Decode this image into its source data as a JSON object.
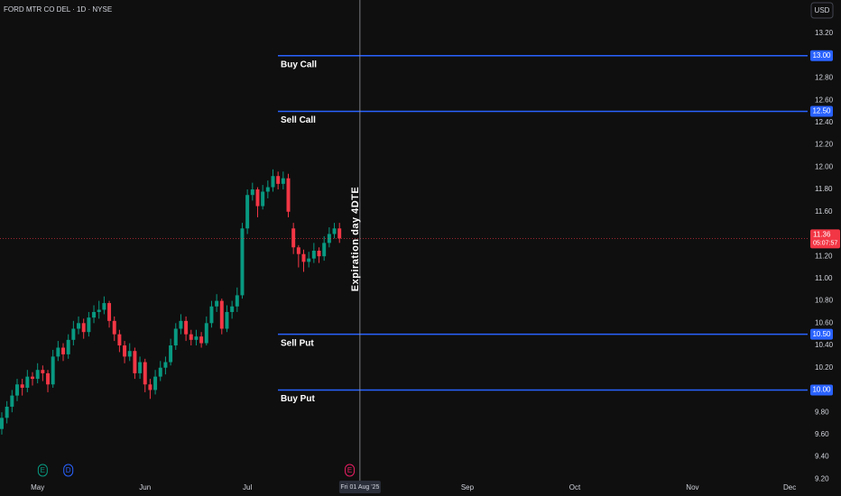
{
  "chart_data": {
    "type": "candlestick",
    "title": "FORD MTR CO DEL · 1D · NYSE",
    "currency": "USD",
    "up_color": "#089981",
    "down_color": "#f23645",
    "open": [
      9.65,
      9.75,
      9.85,
      9.95,
      10.05,
      10.02,
      10.12,
      10.1,
      10.18,
      10.15,
      10.05,
      10.3,
      10.38,
      10.32,
      10.45,
      10.55,
      10.6,
      10.52,
      10.65,
      10.7,
      10.72,
      10.78,
      10.62,
      10.5,
      10.4,
      10.3,
      10.35,
      10.15,
      10.25,
      10.05,
      10.0,
      10.12,
      10.2,
      10.25,
      10.4,
      10.55,
      10.62,
      10.5,
      10.45,
      10.48,
      10.42,
      10.6,
      10.75,
      10.8,
      10.55,
      10.7,
      10.75,
      10.85,
      11.45,
      11.75,
      11.8,
      11.65,
      11.78,
      11.82,
      11.92,
      11.85,
      11.9,
      11.45,
      11.28,
      11.22,
      11.15,
      11.18,
      11.25,
      11.2,
      11.32,
      11.4,
      11.45
    ],
    "high": [
      9.8,
      9.9,
      10.0,
      10.1,
      10.1,
      10.18,
      10.16,
      10.24,
      10.22,
      10.18,
      10.36,
      10.44,
      10.42,
      10.5,
      10.62,
      10.66,
      10.64,
      10.7,
      10.76,
      10.8,
      10.84,
      10.8,
      10.66,
      10.54,
      10.44,
      10.42,
      10.38,
      10.3,
      10.28,
      10.1,
      10.18,
      10.26,
      10.3,
      10.46,
      10.6,
      10.68,
      10.66,
      10.54,
      10.54,
      10.52,
      10.66,
      10.8,
      10.86,
      10.82,
      10.76,
      10.8,
      10.92,
      11.5,
      11.8,
      11.86,
      11.82,
      11.84,
      11.88,
      11.98,
      11.96,
      11.96,
      11.94,
      11.5,
      11.3,
      11.26,
      11.24,
      11.32,
      11.28,
      11.38,
      11.46,
      11.5,
      11.5
    ],
    "low": [
      9.6,
      9.7,
      9.8,
      9.9,
      9.95,
      9.98,
      10.04,
      10.06,
      10.08,
      9.98,
      10.02,
      10.26,
      10.26,
      10.28,
      10.4,
      10.5,
      10.46,
      10.48,
      10.6,
      10.64,
      10.68,
      10.56,
      10.44,
      10.34,
      10.24,
      10.26,
      10.1,
      10.1,
      9.98,
      9.92,
      9.96,
      10.08,
      10.14,
      10.22,
      10.36,
      10.5,
      10.44,
      10.4,
      10.4,
      10.38,
      10.4,
      10.56,
      10.7,
      10.5,
      10.52,
      10.64,
      10.7,
      10.82,
      11.4,
      11.7,
      11.55,
      11.62,
      11.72,
      11.78,
      11.8,
      11.8,
      11.55,
      11.22,
      11.1,
      11.06,
      11.1,
      11.14,
      11.14,
      11.16,
      11.28,
      11.36,
      11.32
    ],
    "close": [
      9.75,
      9.85,
      9.95,
      10.05,
      10.02,
      10.12,
      10.1,
      10.18,
      10.15,
      10.05,
      10.3,
      10.38,
      10.32,
      10.45,
      10.55,
      10.6,
      10.52,
      10.65,
      10.7,
      10.72,
      10.78,
      10.62,
      10.5,
      10.4,
      10.3,
      10.35,
      10.15,
      10.25,
      10.05,
      10.0,
      10.12,
      10.2,
      10.25,
      10.4,
      10.55,
      10.62,
      10.5,
      10.45,
      10.48,
      10.42,
      10.6,
      10.75,
      10.8,
      10.55,
      10.7,
      10.75,
      10.85,
      11.45,
      11.75,
      11.8,
      11.65,
      11.78,
      11.82,
      11.92,
      11.85,
      11.9,
      11.6,
      11.28,
      11.22,
      11.15,
      11.18,
      11.25,
      11.2,
      11.32,
      11.4,
      11.45,
      11.36
    ],
    "countdown": "05:07:57",
    "xlim": [
      -0.35,
      157.5
    ],
    "xticks": [
      {
        "value": 7,
        "label": "May"
      },
      {
        "value": 28,
        "label": "Jun"
      },
      {
        "value": 48,
        "label": "Jul"
      },
      {
        "value": 91,
        "label": "Sep"
      },
      {
        "value": 112,
        "label": "Oct"
      },
      {
        "value": 135,
        "label": "Nov"
      },
      {
        "value": 154,
        "label": "Dec"
      }
    ],
    "ylim": [
      9.17,
      13.5
    ],
    "yticks": [
      {
        "value": 13.2,
        "label": "13.20"
      },
      {
        "value": 12.8,
        "label": "12.80"
      },
      {
        "value": 12.6,
        "label": "12.60"
      },
      {
        "value": 12.4,
        "label": "12.40"
      },
      {
        "value": 12.2,
        "label": "12.20"
      },
      {
        "value": 12,
        "label": "12.00"
      },
      {
        "value": 11.8,
        "label": "11.80"
      },
      {
        "value": 11.6,
        "label": "11.60"
      },
      {
        "value": 11.2,
        "label": "11.20"
      },
      {
        "value": 11,
        "label": "11.00"
      },
      {
        "value": 10.8,
        "label": "10.80"
      },
      {
        "value": 10.6,
        "label": "10.60"
      },
      {
        "value": 10.4,
        "label": "10.40"
      },
      {
        "value": 10.2,
        "label": "10.20"
      },
      {
        "value": 9.8,
        "label": "9.80"
      },
      {
        "value": 9.6,
        "label": "9.60"
      },
      {
        "value": 9.4,
        "label": "9.40"
      },
      {
        "value": 9.2,
        "label": "9.20"
      }
    ],
    "price_lines": [
      {
        "name": "Buy Call",
        "value": 13,
        "label": "13.00",
        "color": "#2962ff"
      },
      {
        "name": "Sell Call",
        "value": 12.5,
        "label": "12.50",
        "color": "#2962ff"
      },
      {
        "name": "Sell Put",
        "value": 10.5,
        "label": "10.50",
        "color": "#2962ff"
      },
      {
        "name": "Buy Put",
        "value": 10,
        "label": "10.00",
        "color": "#2962ff"
      }
    ],
    "vertical_line": {
      "value": 70,
      "label": "Fri 01 Aug '25",
      "annotation": "Expiration day 4DTE"
    },
    "events": [
      {
        "x": 8,
        "label": "E",
        "color": "#089981"
      },
      {
        "x": 13,
        "label": "D",
        "color": "#2962ff"
      },
      {
        "x": 68,
        "label": "E",
        "color": "#e91e63"
      }
    ]
  }
}
